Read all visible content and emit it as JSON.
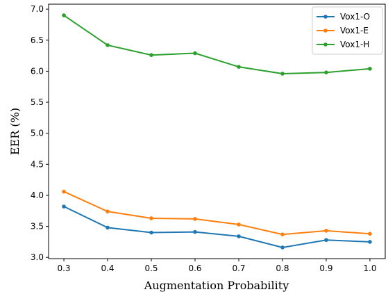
{
  "chart_data": {
    "type": "line",
    "title": "",
    "xlabel": "Augmentation Probability",
    "ylabel": "EER (%)",
    "x": [
      0.3,
      0.4,
      0.5,
      0.6,
      0.7,
      0.8,
      0.9,
      1.0
    ],
    "x_tick_labels": [
      "0.3",
      "0.4",
      "0.5",
      "0.6",
      "0.7",
      "0.8",
      "0.9",
      "1.0"
    ],
    "xlim": [
      0.265,
      1.035
    ],
    "ylim": [
      2.98,
      7.08
    ],
    "y_ticks": [
      3.0,
      3.5,
      4.0,
      4.5,
      5.0,
      5.5,
      6.0,
      6.5,
      7.0
    ],
    "y_tick_labels": [
      "3.0",
      "3.5",
      "4.0",
      "4.5",
      "5.0",
      "5.5",
      "6.0",
      "6.5",
      "7.0"
    ],
    "grid": false,
    "legend_position": "top-right",
    "series": [
      {
        "name": "Vox1-O",
        "color": "#1f77b4",
        "values": [
          3.82,
          3.48,
          3.4,
          3.41,
          3.34,
          3.16,
          3.28,
          3.25
        ]
      },
      {
        "name": "Vox1-E",
        "color": "#ff7f0e",
        "values": [
          4.06,
          3.74,
          3.63,
          3.62,
          3.53,
          3.37,
          3.43,
          3.38
        ]
      },
      {
        "name": "Vox1-H",
        "color": "#2ca02c",
        "values": [
          6.9,
          6.42,
          6.26,
          6.29,
          6.07,
          5.96,
          5.98,
          6.04
        ]
      }
    ]
  }
}
